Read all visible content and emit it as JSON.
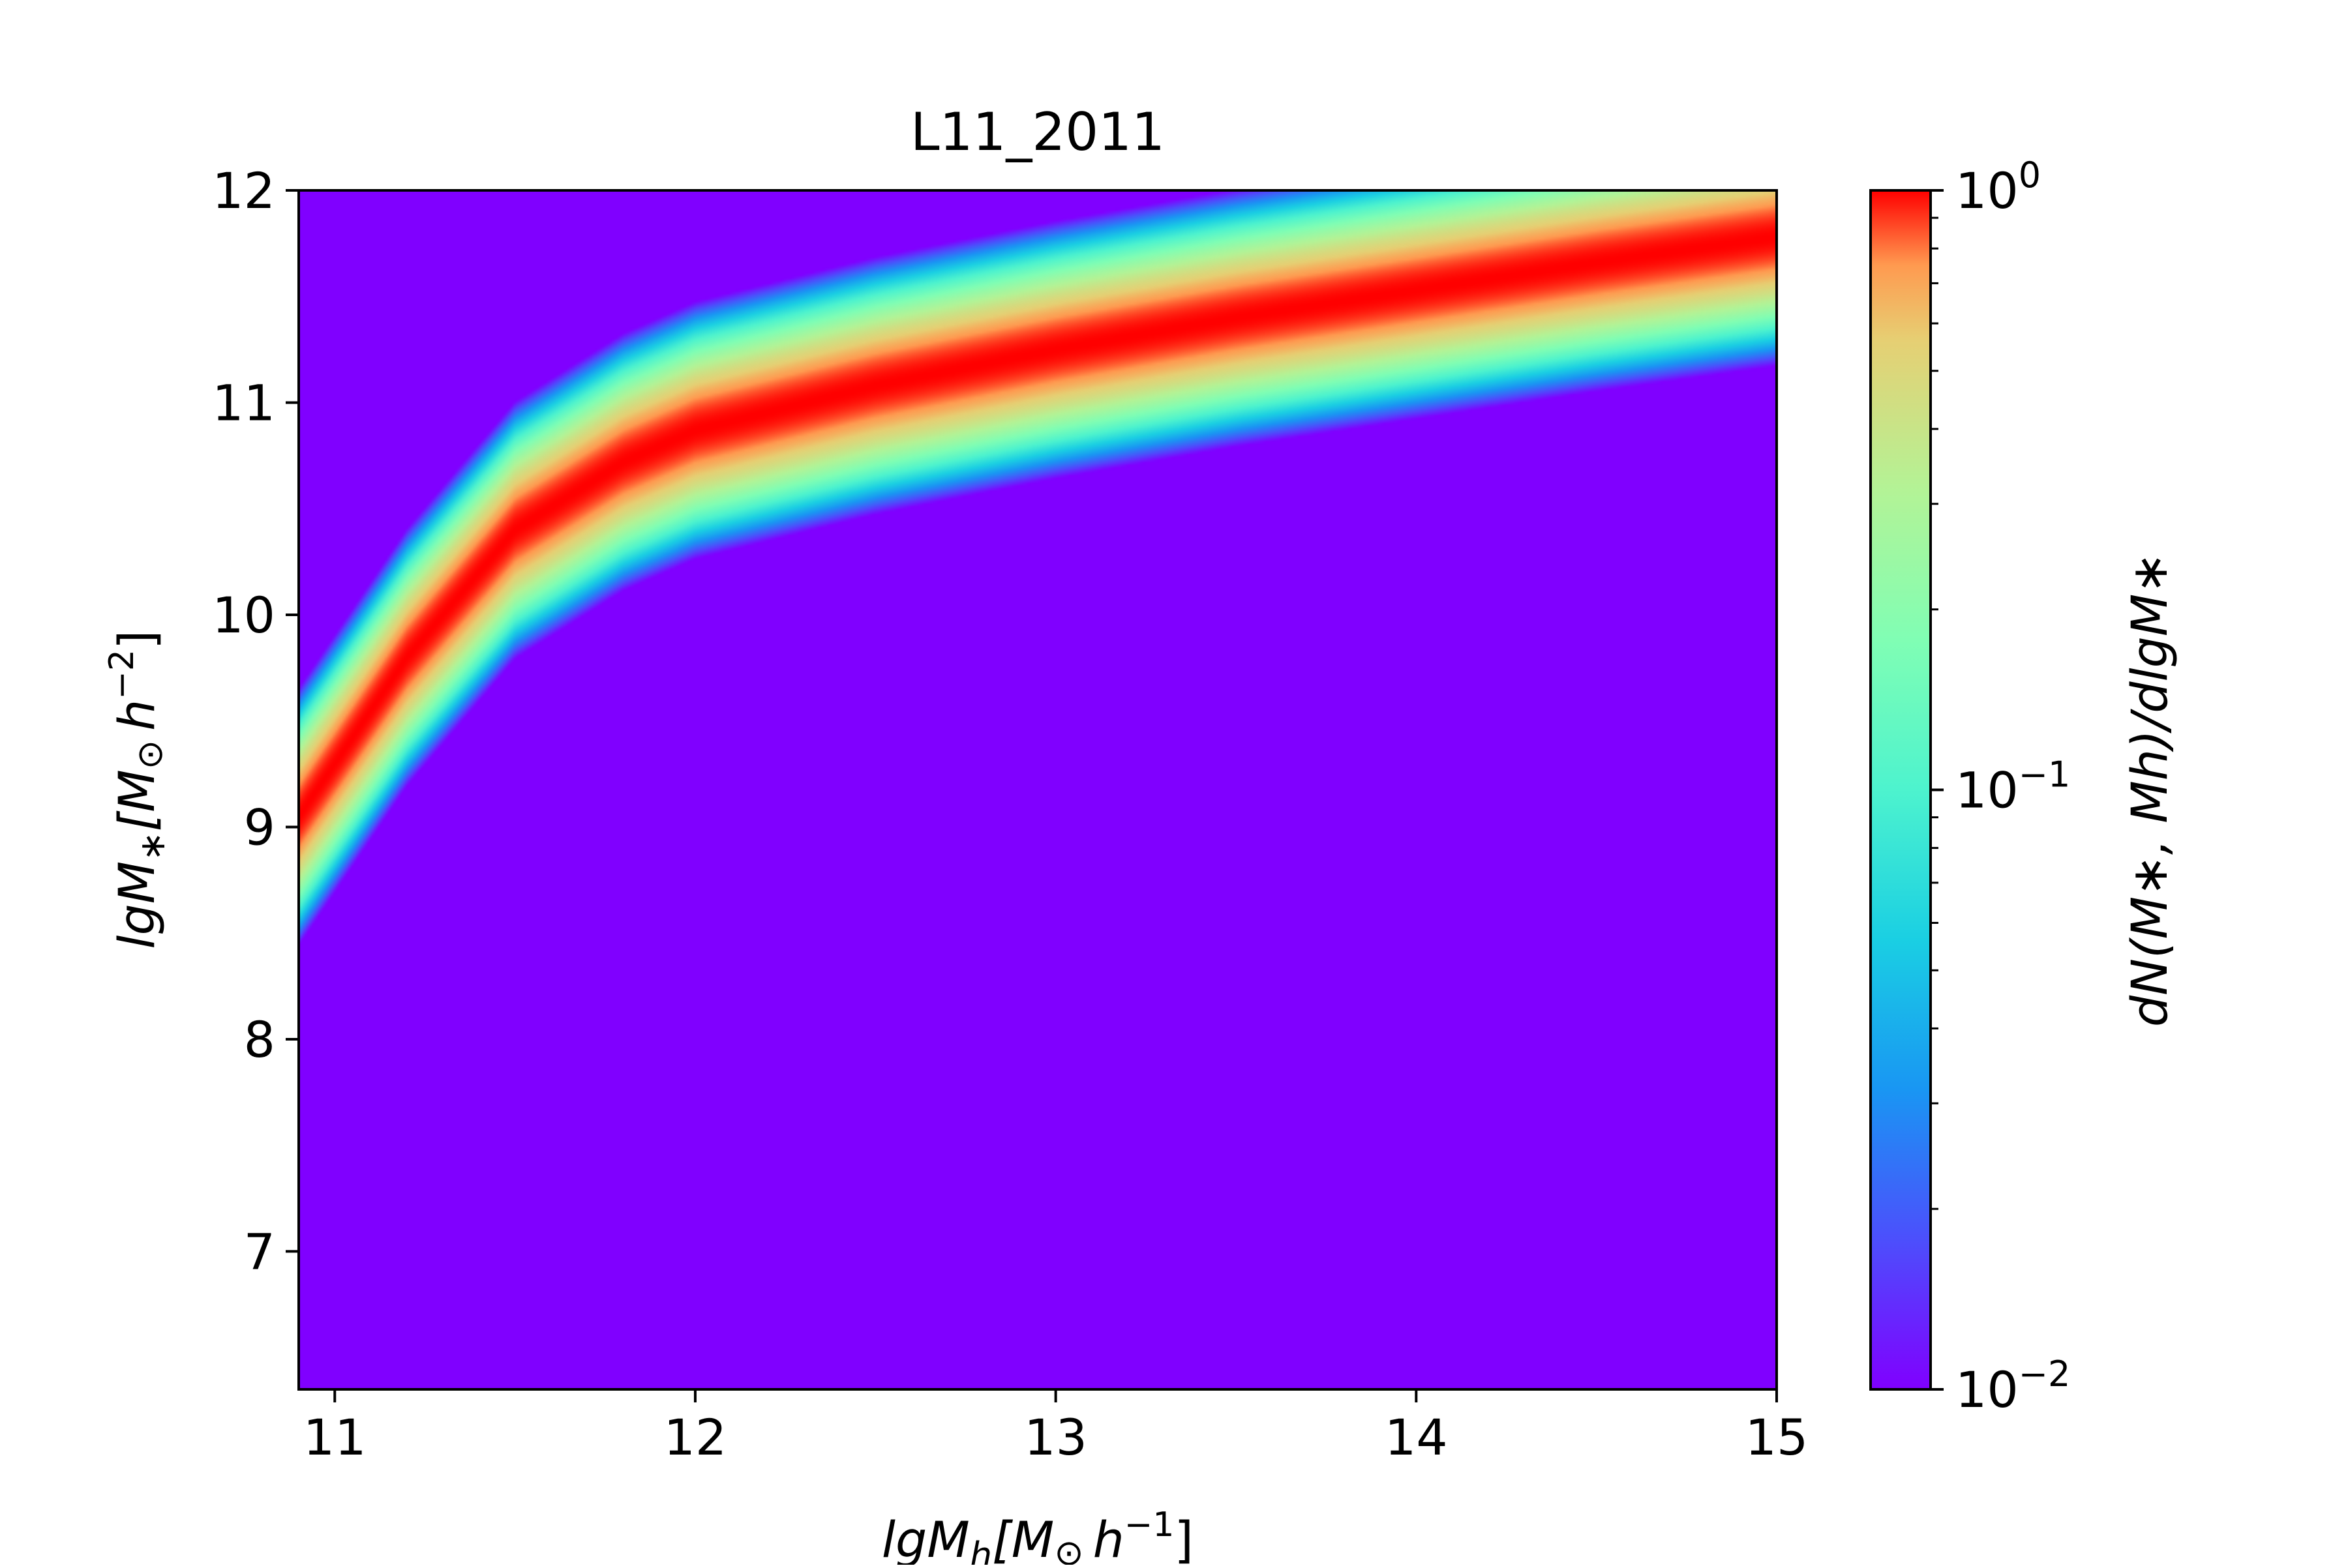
{
  "chart_data": {
    "type": "heatmap",
    "title": "L11_2011",
    "xlabel": {
      "base": "lgM",
      "sub": "h",
      "bracket_open": "[M",
      "sun": "⊙",
      "unit_h": "h",
      "exp": "−1",
      "bracket_close": "]"
    },
    "ylabel": {
      "base": "lgM",
      "sub": "∗",
      "bracket_open": "[M",
      "sun": "⊙",
      "unit_h": "h",
      "exp": "−2",
      "bracket_close": "]"
    },
    "xlim": [
      10.9,
      15.0
    ],
    "ylim": [
      6.35,
      12.0
    ],
    "x_ticks": [
      "11",
      "12",
      "13",
      "14",
      "15"
    ],
    "y_ticks": [
      "7",
      "8",
      "9",
      "10",
      "11",
      "12"
    ],
    "colormap": "rainbow",
    "color_scale": "log",
    "colorbar": {
      "label": "dN(M∗, Mh)/dlgM∗",
      "range": [
        0.01,
        1.0
      ],
      "major_ticks": [
        {
          "value": 0.01,
          "base": "10",
          "exp": "−2"
        },
        {
          "value": 0.1,
          "base": "10",
          "exp": "−1"
        },
        {
          "value": 1.0,
          "base": "10",
          "exp": "0"
        }
      ]
    },
    "ridge": {
      "x": [
        10.9,
        11.2,
        11.5,
        11.8,
        12.0,
        12.5,
        13.0,
        13.5,
        14.0,
        14.5,
        15.0
      ],
      "y": [
        9.05,
        9.8,
        10.4,
        10.72,
        10.87,
        11.08,
        11.25,
        11.4,
        11.53,
        11.66,
        11.78
      ]
    },
    "scatter_dex": 0.2
  }
}
